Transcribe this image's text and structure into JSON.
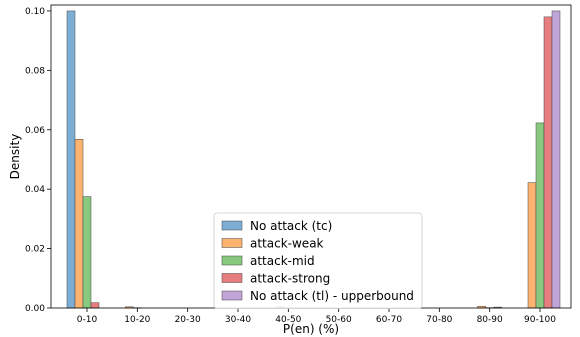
{
  "chart_data": {
    "type": "bar",
    "xlabel": "P(en) (%)",
    "ylabel": "Density",
    "ylim": [
      0,
      0.102
    ],
    "yticks": [
      0.0,
      0.02,
      0.04,
      0.06,
      0.08,
      0.1
    ],
    "ytick_labels": [
      "0.00",
      "0.02",
      "0.04",
      "0.06",
      "0.08",
      "0.10"
    ],
    "categories": [
      "0-10",
      "10-20",
      "20-30",
      "30-40",
      "40-50",
      "50-60",
      "60-70",
      "70-80",
      "80-90",
      "90-100"
    ],
    "legend_position": "lower-center",
    "grid": false,
    "series": [
      {
        "name": "No attack (tc)",
        "color": "#7eadd3",
        "values": [
          0.1,
          0,
          0,
          0,
          0,
          0,
          0,
          0,
          0,
          0
        ]
      },
      {
        "name": "attack-weak",
        "color": "#fcb36f",
        "values": [
          0.0568,
          0.0004,
          0,
          0,
          0.0004,
          0,
          0,
          0,
          0.0006,
          0.0422
        ]
      },
      {
        "name": "attack-mid",
        "color": "#88c97f",
        "values": [
          0.0375,
          0.0001,
          0,
          0,
          0.0001,
          0,
          0,
          0,
          0.0001,
          0.0623
        ]
      },
      {
        "name": "attack-strong",
        "color": "#e67d7e",
        "values": [
          0.0018,
          0,
          0,
          0,
          0,
          0,
          0,
          0,
          0.0003,
          0.098
        ]
      },
      {
        "name": "No attack (tl) - upperbound",
        "color": "#c0a5d8",
        "values": [
          0,
          0,
          0,
          0,
          0,
          0,
          0,
          0,
          0,
          0.1
        ]
      }
    ]
  }
}
